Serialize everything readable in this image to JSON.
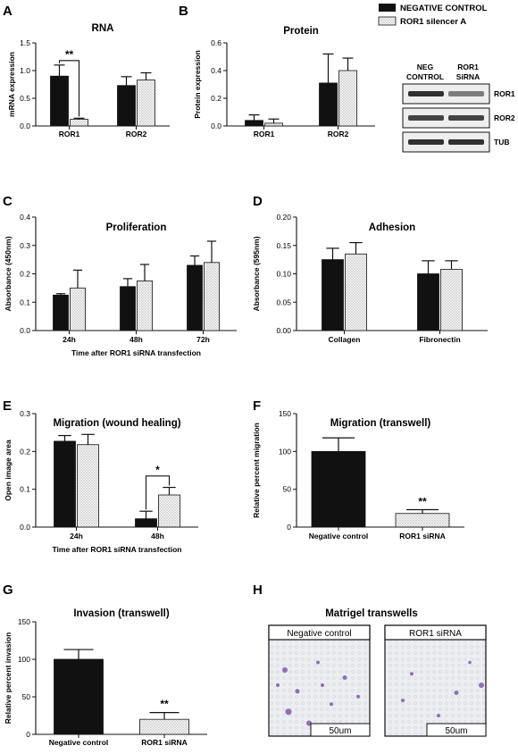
{
  "panel_letters": [
    "A",
    "B",
    "C",
    "D",
    "E",
    "F",
    "G",
    "H"
  ],
  "legend": {
    "series": [
      "NEGATIVE CONTROL",
      "ROR1 silencer A"
    ]
  },
  "colors": {
    "negative": "#111111",
    "silencer_pattern": "dotted-light"
  },
  "blot": {
    "col_labels": [
      [
        "NEG",
        "CONTROL"
      ],
      [
        "ROR1",
        "SiRNA"
      ]
    ],
    "row_labels": [
      "ROR1",
      "ROR2",
      "TUB"
    ],
    "band_intensity": [
      [
        0.85,
        0.45
      ],
      [
        0.75,
        0.75
      ],
      [
        0.85,
        0.85
      ]
    ]
  },
  "matrigel": {
    "title": "Matrigel transwells",
    "images": [
      {
        "label": "Negative control",
        "scalebar": "50um"
      },
      {
        "label": "ROR1 siRNA",
        "scalebar": "50um"
      }
    ]
  },
  "chart_data": [
    {
      "panel": "A",
      "type": "bar",
      "title": "RNA",
      "xlabel": "",
      "ylabel": "mRNA expression",
      "ylim": [
        0,
        1.5
      ],
      "yticks": [
        "0.0",
        "0.5",
        "1.0",
        "1.5"
      ],
      "yticks_v": [
        0,
        0.5,
        1.0,
        1.5
      ],
      "categories": [
        "ROR1",
        "ROR2"
      ],
      "series": [
        {
          "values": [
            0.9,
            0.73
          ],
          "errors": [
            0.2,
            0.16
          ]
        },
        {
          "values": [
            0.12,
            0.83
          ],
          "errors": [
            0.02,
            0.13
          ]
        }
      ],
      "annotations": [
        {
          "text": "**",
          "cat": 0,
          "y": 1.18
        }
      ]
    },
    {
      "panel": "B",
      "type": "bar",
      "title": "Protein",
      "xlabel": "",
      "ylabel": "Protein expression",
      "ylim": [
        0,
        0.6
      ],
      "yticks": [
        "0.0",
        "0.2",
        "0.4",
        "0.6"
      ],
      "yticks_v": [
        0,
        0.2,
        0.4,
        0.6
      ],
      "categories": [
        "ROR1",
        "ROR2"
      ],
      "series": [
        {
          "values": [
            0.04,
            0.31
          ],
          "errors": [
            0.04,
            0.21
          ]
        },
        {
          "values": [
            0.02,
            0.4
          ],
          "errors": [
            0.03,
            0.09
          ]
        }
      ],
      "annotations": []
    },
    {
      "panel": "C",
      "type": "bar",
      "title": "Proliferation",
      "xlabel": "Time after ROR1 siRNA transfection",
      "ylabel": "Absorbance (450nm)",
      "ylim": [
        0,
        0.4
      ],
      "yticks": [
        "0.0",
        "0.1",
        "0.2",
        "0.3",
        "0.4"
      ],
      "yticks_v": [
        0,
        0.1,
        0.2,
        0.3,
        0.4
      ],
      "categories": [
        "24h",
        "48h",
        "72h"
      ],
      "series": [
        {
          "values": [
            0.125,
            0.155,
            0.23
          ],
          "errors": [
            0.005,
            0.028,
            0.033
          ]
        },
        {
          "values": [
            0.15,
            0.175,
            0.24
          ],
          "errors": [
            0.063,
            0.058,
            0.075
          ]
        }
      ],
      "annotations": []
    },
    {
      "panel": "D",
      "type": "bar",
      "title": "Adhesion",
      "xlabel": "",
      "ylabel": "Absorbance (595nm)",
      "ylim": [
        0,
        0.2
      ],
      "yticks": [
        "0.00",
        "0.05",
        "0.10",
        "0.15",
        "0.20"
      ],
      "yticks_v": [
        0,
        0.05,
        0.1,
        0.15,
        0.2
      ],
      "categories": [
        "Collagen",
        "Fibronectin"
      ],
      "series": [
        {
          "values": [
            0.125,
            0.1
          ],
          "errors": [
            0.02,
            0.023
          ]
        },
        {
          "values": [
            0.135,
            0.108
          ],
          "errors": [
            0.02,
            0.015
          ]
        }
      ],
      "annotations": []
    },
    {
      "panel": "E",
      "type": "bar",
      "title": "Migration (wound healing)",
      "xlabel": "Time after ROR1 siRNA transfection",
      "ylabel": "Open image area",
      "ylim": [
        0,
        0.3
      ],
      "yticks": [
        "0.0",
        "0.1",
        "0.2",
        "0.3"
      ],
      "yticks_v": [
        0,
        0.1,
        0.2,
        0.3
      ],
      "categories": [
        "24h",
        "48h"
      ],
      "series": [
        {
          "values": [
            0.227,
            0.022
          ],
          "errors": [
            0.015,
            0.02
          ]
        },
        {
          "values": [
            0.218,
            0.085
          ],
          "errors": [
            0.027,
            0.02
          ]
        }
      ],
      "annotations": [
        {
          "text": "*",
          "cat": 1,
          "y": 0.135
        }
      ]
    },
    {
      "panel": "F",
      "type": "bar",
      "title": "Migration (transwell)",
      "xlabel": "",
      "ylabel": "Relative percent migration",
      "ylim": [
        0,
        150
      ],
      "yticks": [
        "0",
        "50",
        "100",
        "150"
      ],
      "yticks_v": [
        0,
        50,
        100,
        150
      ],
      "categories": [
        "Negative control",
        "ROR1 siRNA"
      ],
      "series": [
        {
          "values": [
            100,
            18
          ],
          "errors": [
            18,
            5
          ]
        }
      ],
      "bar_styles": [
        "dark",
        "dotted"
      ],
      "annotations": [
        {
          "text": "**",
          "cat": 1,
          "y": 29
        }
      ]
    },
    {
      "panel": "G",
      "type": "bar",
      "title": "Invasion (transwell)",
      "xlabel": "",
      "ylabel": "Relative percent invasion",
      "ylim": [
        0,
        150
      ],
      "yticks": [
        "0",
        "50",
        "100",
        "150"
      ],
      "yticks_v": [
        0,
        50,
        100,
        150
      ],
      "categories": [
        "Negative control",
        "ROR1 siRNA"
      ],
      "series": [
        {
          "values": [
            100,
            20
          ],
          "errors": [
            13,
            9
          ]
        }
      ],
      "bar_styles": [
        "dark",
        "dotted"
      ],
      "annotations": [
        {
          "text": "**",
          "cat": 1,
          "y": 36
        }
      ]
    }
  ]
}
